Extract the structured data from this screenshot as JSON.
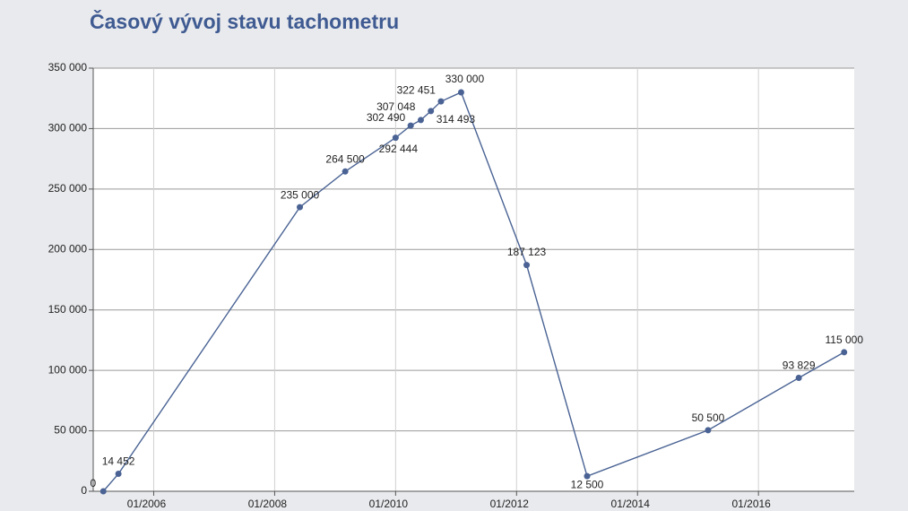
{
  "chart_data": {
    "type": "line",
    "title": "Časový vývoj stavu tachometru",
    "x": [
      "03/2005",
      "06/2005",
      "06/2008",
      "03/2009",
      "01/2010",
      "04/2010",
      "06/2010",
      "08/2010",
      "10/2010",
      "02/2011",
      "03/2012",
      "03/2013",
      "03/2015",
      "09/2016",
      "06/2017"
    ],
    "series": [
      {
        "color": "#4a6394",
        "values": [
          0,
          14452,
          235000,
          264500,
          292444,
          302490,
          307048,
          314493,
          322451,
          330000,
          187123,
          12500,
          50500,
          93829,
          115000
        ],
        "value_labels": [
          "0",
          "14 452",
          "235 000",
          "264 500",
          "292 444",
          "302 490",
          "307 048",
          "314 493",
          "322 451",
          "330 000",
          "187 123",
          "12 500",
          "50 500",
          "93 829",
          "115 000"
        ]
      }
    ],
    "xlim": [
      "01/2005",
      "08/2017"
    ],
    "xticks": [
      "01/2006",
      "01/2008",
      "01/2010",
      "01/2012",
      "01/2014",
      "01/2016"
    ],
    "ylim": [
      0,
      350000
    ],
    "yticks": [
      0,
      {
        "value": 50000,
        "label": "50 000"
      },
      {
        "value": 100000,
        "label": "100 000"
      },
      {
        "value": 150000,
        "label": "150 000"
      },
      {
        "value": 200000,
        "label": "200 000"
      },
      {
        "value": 250000,
        "label": "250 000"
      },
      {
        "value": 300000,
        "label": "300 000"
      },
      {
        "value": 350000,
        "label": "350 000"
      }
    ],
    "grid": true
  }
}
